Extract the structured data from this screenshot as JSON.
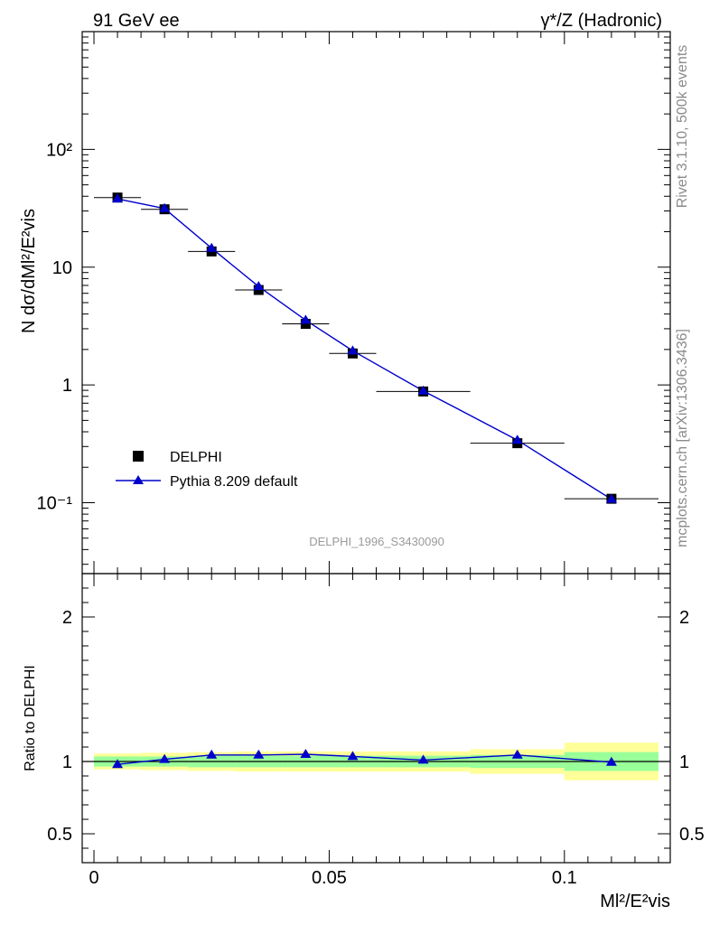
{
  "header": {
    "left": "91 GeV ee",
    "right": "γ*/Z (Hadronic)"
  },
  "side_labels": {
    "rivet": "Rivet 3.1.10,  500k events",
    "mcplots": "mcplots.cern.ch [arXiv:1306.3436]"
  },
  "analysis_tag": "DELPHI_1996_S3430090",
  "colors": {
    "mc": "#0000cc",
    "data": "#000000",
    "band_inner": "#99ff99",
    "band_outer": "#ffff99"
  },
  "chart_data": [
    {
      "type": "scatter",
      "title": "",
      "ylabel": "N dσ/dMl²/E²vis",
      "xlabel": "",
      "yscale": "log",
      "ylim": [
        0.025,
        1000
      ],
      "xlim": [
        -0.0025,
        0.1225
      ],
      "ytick_labels": [
        "10⁻¹",
        "1",
        "10",
        "10²"
      ],
      "legend": {
        "placement": "lower-left",
        "entries": [
          "DELPHI",
          "Pythia 8.209 default"
        ]
      },
      "series": [
        {
          "name": "DELPHI",
          "marker": "square",
          "x": [
            0.005,
            0.015,
            0.025,
            0.035,
            0.045,
            0.055,
            0.07,
            0.09,
            0.11
          ],
          "y": [
            39.0,
            31.0,
            13.6,
            6.4,
            3.3,
            1.85,
            0.88,
            0.32,
            0.108
          ],
          "xerr": [
            0.005,
            0.005,
            0.005,
            0.005,
            0.005,
            0.005,
            0.01,
            0.01,
            0.01
          ]
        },
        {
          "name": "Pythia 8.209 default",
          "marker": "triangle",
          "x": [
            0.005,
            0.015,
            0.025,
            0.035,
            0.045,
            0.055,
            0.07,
            0.09,
            0.11
          ],
          "y": [
            38.0,
            31.5,
            14.5,
            6.85,
            3.55,
            1.95,
            0.89,
            0.34,
            0.107
          ]
        }
      ]
    },
    {
      "type": "line",
      "ylabel": "Ratio to DELPHI",
      "xlabel": "Ml²/E²vis",
      "ylim": [
        0.3,
        2.3
      ],
      "xlim": [
        -0.0025,
        0.1225
      ],
      "ytick_labels": [
        "0.5",
        "1",
        "2"
      ],
      "xtick_labels": [
        "0",
        "0.05",
        "0.1"
      ],
      "bins": [
        {
          "lo": 0.0,
          "hi": 0.01,
          "inner": [
            0.965,
            1.035
          ],
          "outer": [
            0.945,
            1.055
          ]
        },
        {
          "lo": 0.01,
          "hi": 0.02,
          "inner": [
            0.965,
            1.035
          ],
          "outer": [
            0.94,
            1.06
          ]
        },
        {
          "lo": 0.02,
          "hi": 0.03,
          "inner": [
            0.96,
            1.04
          ],
          "outer": [
            0.935,
            1.065
          ]
        },
        {
          "lo": 0.03,
          "hi": 0.04,
          "inner": [
            0.96,
            1.04
          ],
          "outer": [
            0.93,
            1.07
          ]
        },
        {
          "lo": 0.04,
          "hi": 0.05,
          "inner": [
            0.96,
            1.04
          ],
          "outer": [
            0.93,
            1.07
          ]
        },
        {
          "lo": 0.05,
          "hi": 0.06,
          "inner": [
            0.96,
            1.04
          ],
          "outer": [
            0.93,
            1.07
          ]
        },
        {
          "lo": 0.06,
          "hi": 0.08,
          "inner": [
            0.96,
            1.04
          ],
          "outer": [
            0.93,
            1.07
          ]
        },
        {
          "lo": 0.08,
          "hi": 0.1,
          "inner": [
            0.955,
            1.045
          ],
          "outer": [
            0.915,
            1.085
          ]
        },
        {
          "lo": 0.1,
          "hi": 0.12,
          "inner": [
            0.935,
            1.065
          ],
          "outer": [
            0.87,
            1.13
          ]
        }
      ],
      "series": [
        {
          "name": "Pythia 8.209 default",
          "x": [
            0.005,
            0.015,
            0.025,
            0.035,
            0.045,
            0.055,
            0.07,
            0.09,
            0.11
          ],
          "y": [
            0.98,
            1.015,
            1.045,
            1.045,
            1.05,
            1.035,
            1.01,
            1.045,
            0.995
          ],
          "yerr": [
            0.005,
            0.005,
            0.005,
            0.005,
            0.005,
            0.005,
            0.005,
            0.008,
            0.02
          ]
        }
      ]
    }
  ]
}
